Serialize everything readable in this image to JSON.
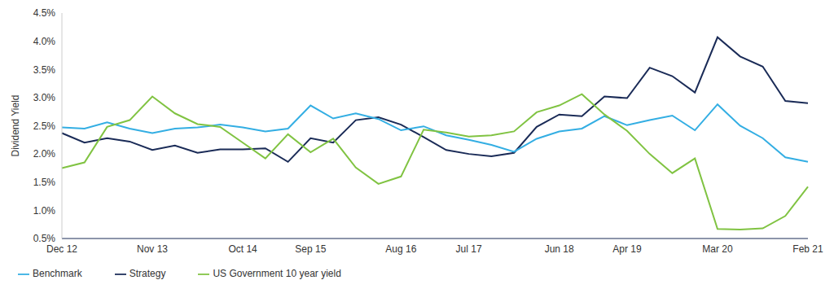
{
  "chart_data": {
    "type": "line",
    "y_label": "Dividend Yield",
    "categories": [
      "Dec 12",
      null,
      null,
      null,
      "Nov 13",
      null,
      null,
      null,
      "Oct 14",
      null,
      null,
      "Sep 15",
      null,
      null,
      null,
      "Aug 16",
      null,
      null,
      "Jul 17",
      null,
      null,
      null,
      "Jun 18",
      null,
      null,
      "Apr 19",
      null,
      null,
      null,
      "Mar 20",
      null,
      null,
      null,
      "Feb 21"
    ],
    "series": [
      {
        "name": "Strategy",
        "color": "#1a2b57",
        "values": [
          2.37,
          2.2,
          2.28,
          2.22,
          2.07,
          2.15,
          2.02,
          2.08,
          2.08,
          2.1,
          1.86,
          2.28,
          2.2,
          2.6,
          2.65,
          2.52,
          2.3,
          2.07,
          2.0,
          1.96,
          2.02,
          2.48,
          2.7,
          2.67,
          3.02,
          2.99,
          3.53,
          3.38,
          3.09,
          4.07,
          3.73,
          3.55,
          2.94,
          2.9
        ]
      },
      {
        "name": "Benchmark",
        "color": "#33aee3",
        "values": [
          2.47,
          2.45,
          2.56,
          2.45,
          2.37,
          2.45,
          2.47,
          2.52,
          2.47,
          2.4,
          2.45,
          2.86,
          2.63,
          2.72,
          2.62,
          2.42,
          2.49,
          2.33,
          2.25,
          2.16,
          2.04,
          2.27,
          2.4,
          2.45,
          2.67,
          2.51,
          2.6,
          2.68,
          2.42,
          2.88,
          2.5,
          2.28,
          1.94,
          1.86
        ]
      },
      {
        "name": "US Government 10 year yield",
        "color": "#80c342",
        "values": [
          1.75,
          1.85,
          2.48,
          2.6,
          3.02,
          2.72,
          2.53,
          2.48,
          2.2,
          1.92,
          2.35,
          2.03,
          2.27,
          1.76,
          1.47,
          1.6,
          2.43,
          2.38,
          2.31,
          2.33,
          2.4,
          2.74,
          2.86,
          3.06,
          2.7,
          2.41,
          2.0,
          1.66,
          1.92,
          0.67,
          0.66,
          0.68,
          0.9,
          1.42
        ]
      }
    ],
    "ylim": [
      0.5,
      4.5
    ],
    "yticks": [
      {
        "value": 0.5,
        "label": "0.5%"
      },
      {
        "value": 1.0,
        "label": "1.0%"
      },
      {
        "value": 1.5,
        "label": "1.5%"
      },
      {
        "value": 2.0,
        "label": "2.0%"
      },
      {
        "value": 2.5,
        "label": "2.5%"
      },
      {
        "value": 3.0,
        "label": "3.0%"
      },
      {
        "value": 3.5,
        "label": "3.5%"
      },
      {
        "value": 4.0,
        "label": "4.0%"
      },
      {
        "value": 4.5,
        "label": "4.5%"
      }
    ],
    "grid": false,
    "legend": "bottom-left"
  }
}
